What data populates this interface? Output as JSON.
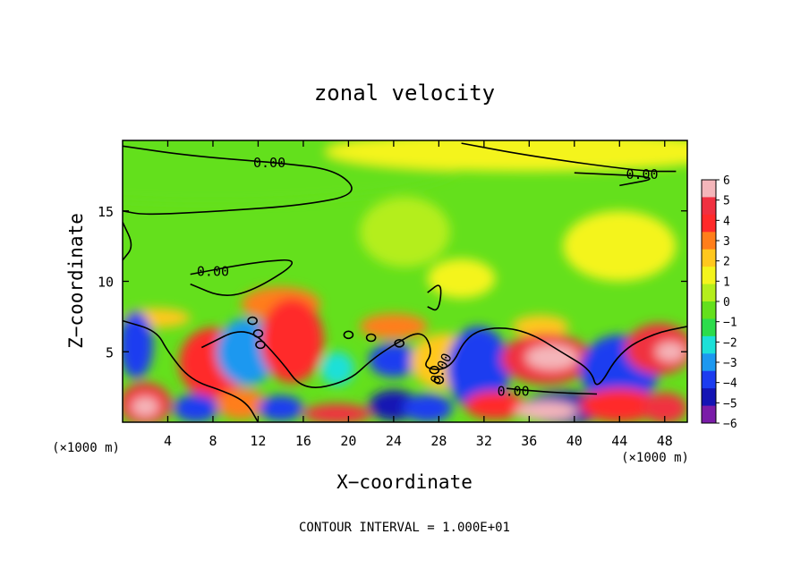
{
  "chart_data": {
    "type": "heatmap",
    "title": "zonal velocity",
    "xlabel": "X−coordinate",
    "ylabel": "Z−coordinate",
    "x_unit_left": "(×1000 m)",
    "x_unit_right": "(×1000 m)",
    "footer": "CONTOUR INTERVAL = 1.000E+01",
    "xlim": [
      0,
      50
    ],
    "ylim": [
      0,
      20
    ],
    "x_ticks": [
      4,
      8,
      12,
      16,
      20,
      24,
      28,
      32,
      36,
      40,
      44,
      48
    ],
    "x_tick_labels": [
      "4",
      "8",
      "12",
      "16",
      "20",
      "24",
      "28",
      "32",
      "36",
      "40",
      "44",
      "48"
    ],
    "y_ticks": [
      5,
      10,
      15
    ],
    "y_tick_labels": [
      "5",
      "10",
      "15"
    ],
    "contour_labels": [
      "0.00",
      "0.00",
      "0.00",
      "0.00",
      "0.00"
    ],
    "colorbar": {
      "levels": [
        6,
        5,
        4,
        3,
        2,
        1,
        0,
        -1,
        -2,
        -3,
        -4,
        -5,
        -6
      ],
      "labels": [
        "6",
        "5",
        "4",
        "3",
        "2",
        "1",
        "0",
        "−1",
        "−2",
        "−3",
        "−4",
        "−5",
        "−6"
      ],
      "colors": [
        "#f4b6ba",
        "#f03040",
        "#ff2a2a",
        "#ff7e1a",
        "#ffc81e",
        "#f4f41c",
        "#b4ee1c",
        "#64e01c",
        "#2cdc4c",
        "#1ce0d8",
        "#1c98f0",
        "#1c3cf0",
        "#1414b4",
        "#7a1ca8"
      ]
    }
  }
}
